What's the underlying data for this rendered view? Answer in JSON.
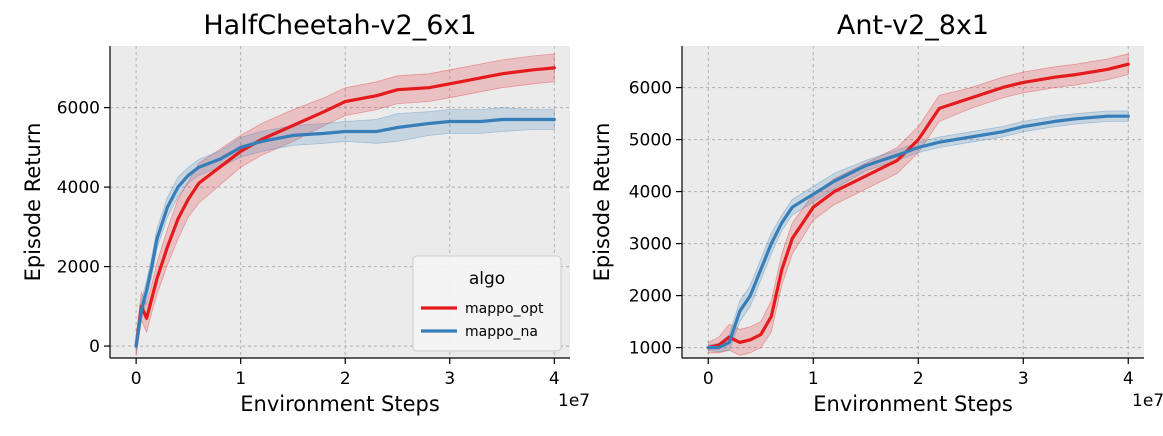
{
  "chart_data": [
    {
      "type": "line",
      "title": "HalfCheetah-v2_6x1",
      "xlabel": "Environment Steps",
      "ylabel": "Episode Return",
      "x_offset_label": "1e7",
      "xlim": [
        -0.25,
        4.15
      ],
      "ylim": [
        -300,
        7550
      ],
      "xticks": [
        0,
        1,
        2,
        3,
        4
      ],
      "xtick_labels": [
        "0",
        "1",
        "2",
        "3",
        "4"
      ],
      "yticks": [
        0,
        2000,
        4000,
        6000
      ],
      "ytick_labels": [
        "0",
        "2000",
        "4000",
        "6000"
      ],
      "grid": true,
      "legend": {
        "title": "algo",
        "placement": "lower-right"
      },
      "series": [
        {
          "name": "mappo_opt",
          "color": "#e41a1c",
          "x": [
            0,
            0.05,
            0.1,
            0.15,
            0.2,
            0.3,
            0.4,
            0.5,
            0.6,
            0.8,
            1.0,
            1.2,
            1.5,
            1.8,
            2.0,
            2.3,
            2.5,
            2.8,
            3.0,
            3.3,
            3.5,
            3.8,
            4.0
          ],
          "y": [
            0,
            1000,
            700,
            1200,
            1700,
            2500,
            3200,
            3700,
            4100,
            4500,
            4900,
            5200,
            5550,
            5900,
            6150,
            6300,
            6450,
            6500,
            6600,
            6750,
            6850,
            6950,
            7000
          ],
          "band": [
            250,
            350,
            350,
            350,
            400,
            450,
            500,
            450,
            500,
            450,
            400,
            400,
            400,
            350,
            350,
            350,
            350,
            350,
            350,
            350,
            350,
            350,
            350
          ]
        },
        {
          "name": "mappo_na",
          "color": "#377eb8",
          "x": [
            0,
            0.05,
            0.1,
            0.15,
            0.2,
            0.3,
            0.4,
            0.5,
            0.6,
            0.8,
            1.0,
            1.2,
            1.5,
            1.8,
            2.0,
            2.3,
            2.5,
            2.8,
            3.0,
            3.3,
            3.5,
            3.8,
            4.0
          ],
          "y": [
            0,
            900,
            1400,
            2000,
            2700,
            3500,
            4000,
            4300,
            4500,
            4700,
            5000,
            5150,
            5300,
            5350,
            5400,
            5400,
            5500,
            5600,
            5650,
            5650,
            5700,
            5700,
            5700
          ],
          "band": [
            150,
            250,
            250,
            250,
            250,
            250,
            250,
            200,
            200,
            200,
            250,
            250,
            250,
            250,
            250,
            300,
            350,
            300,
            300,
            300,
            300,
            250,
            250
          ]
        }
      ]
    },
    {
      "type": "line",
      "title": "Ant-v2_8x1",
      "xlabel": "Environment Steps",
      "ylabel": "Episode Return",
      "x_offset_label": "1e7",
      "xlim": [
        -0.25,
        4.15
      ],
      "ylim": [
        800,
        6800
      ],
      "xticks": [
        0,
        1,
        2,
        3,
        4
      ],
      "xtick_labels": [
        "0",
        "1",
        "2",
        "3",
        "4"
      ],
      "yticks": [
        1000,
        2000,
        3000,
        4000,
        5000,
        6000
      ],
      "ytick_labels": [
        "1000",
        "2000",
        "3000",
        "4000",
        "5000",
        "6000"
      ],
      "grid": true,
      "legend": null,
      "series": [
        {
          "name": "mappo_opt",
          "color": "#e41a1c",
          "x": [
            0,
            0.1,
            0.2,
            0.3,
            0.4,
            0.5,
            0.6,
            0.7,
            0.8,
            1.0,
            1.2,
            1.5,
            1.8,
            2.0,
            2.2,
            2.5,
            2.8,
            3.0,
            3.3,
            3.5,
            3.8,
            4.0
          ],
          "y": [
            1000,
            1050,
            1200,
            1100,
            1150,
            1250,
            1600,
            2500,
            3100,
            3700,
            4000,
            4300,
            4600,
            5000,
            5600,
            5800,
            6000,
            6100,
            6200,
            6250,
            6350,
            6450
          ],
          "band": [
            100,
            150,
            250,
            250,
            250,
            250,
            300,
            300,
            300,
            250,
            250,
            250,
            250,
            250,
            250,
            200,
            200,
            200,
            200,
            200,
            200,
            200
          ]
        },
        {
          "name": "mappo_na",
          "color": "#377eb8",
          "x": [
            0,
            0.1,
            0.2,
            0.3,
            0.4,
            0.5,
            0.6,
            0.7,
            0.8,
            1.0,
            1.2,
            1.5,
            1.8,
            2.0,
            2.2,
            2.5,
            2.8,
            3.0,
            3.3,
            3.5,
            3.8,
            4.0
          ],
          "y": [
            1000,
            1000,
            1100,
            1700,
            2000,
            2500,
            3000,
            3400,
            3700,
            3950,
            4200,
            4500,
            4700,
            4850,
            4950,
            5050,
            5150,
            5250,
            5350,
            5400,
            5450,
            5450
          ],
          "band": [
            50,
            80,
            150,
            200,
            200,
            200,
            200,
            150,
            150,
            150,
            150,
            100,
            100,
            100,
            100,
            100,
            100,
            100,
            100,
            100,
            100,
            100
          ]
        }
      ]
    }
  ]
}
